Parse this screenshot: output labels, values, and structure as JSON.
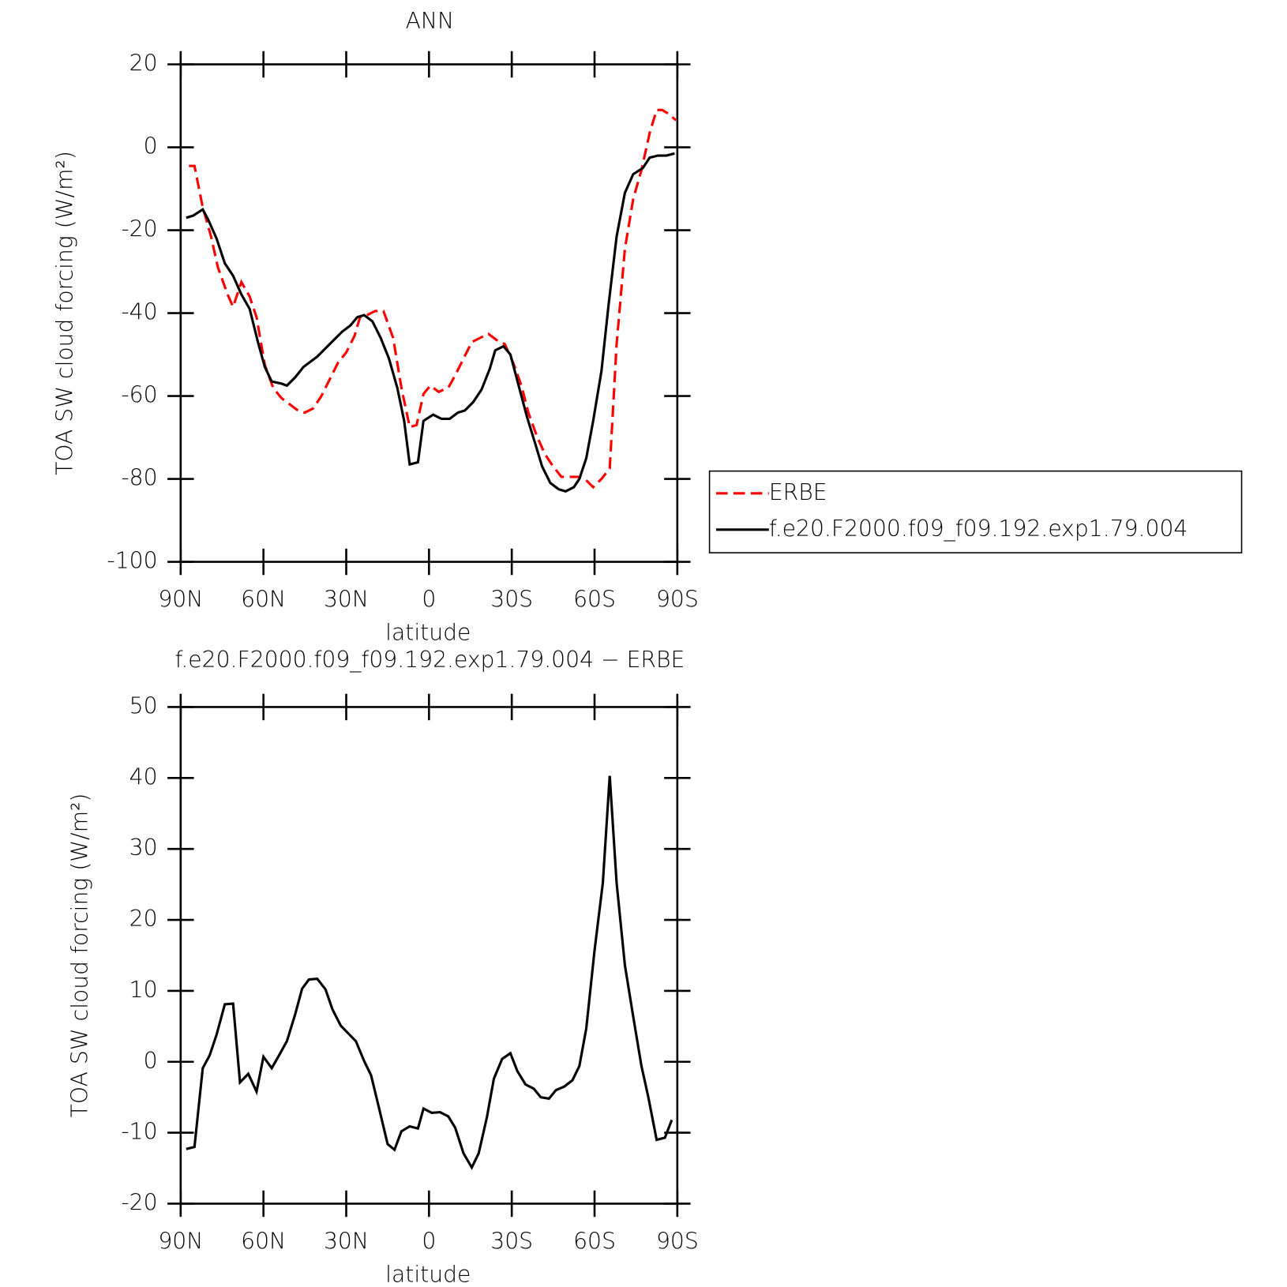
{
  "chart_data": [
    {
      "type": "line",
      "title": "ANN",
      "xlabel": "latitude",
      "ylabel": "TOA SW cloud forcing (W/m²)",
      "xlim": [
        90,
        -90
      ],
      "xticks": [
        {
          "value": 90,
          "label": "90N"
        },
        {
          "value": 60,
          "label": "60N"
        },
        {
          "value": 30,
          "label": "30N"
        },
        0,
        {
          "value": -30,
          "label": "30S"
        },
        {
          "value": -60,
          "label": "60S"
        },
        {
          "value": -90,
          "label": "90S"
        }
      ],
      "ylim": [
        -100,
        20
      ],
      "yticks": [
        -100,
        -80,
        -60,
        -40,
        -20,
        0,
        20
      ],
      "legend": "right",
      "series": [
        {
          "name": "ERBE",
          "color": "#ff0000",
          "dash": true,
          "x": [
            87,
            85,
            82,
            79,
            76.5,
            73,
            71,
            68,
            65,
            62.5,
            59.5,
            56.5,
            53.5,
            50.5,
            47.5,
            45,
            42,
            39,
            36,
            33,
            30,
            27,
            25,
            22.5,
            19.5,
            16.5,
            13,
            10,
            7,
            4.5,
            2,
            -0.5,
            -3.5,
            -7,
            -9.5,
            -12.5,
            -15.5,
            -18.5,
            -21.5,
            -24.5,
            -27.5,
            -30.5,
            -33.5,
            -36,
            -39,
            -42,
            -45,
            -48,
            -51,
            -54,
            -56.5,
            -59.5,
            -62.5,
            -65.5,
            -68,
            -71,
            -74,
            -77,
            -80,
            -82.5,
            -84.5,
            -87,
            -89.5
          ],
          "values": [
            -4.5,
            -4.5,
            -14.5,
            -21.5,
            -29,
            -35.5,
            -38.5,
            -32.5,
            -36,
            -41,
            -52.5,
            -58,
            -60.5,
            -62,
            -63.5,
            -64,
            -63,
            -60,
            -56,
            -52,
            -49.5,
            -45.5,
            -41,
            -40.5,
            -39.5,
            -39.5,
            -46,
            -58,
            -67.5,
            -67,
            -59.5,
            -57.5,
            -59,
            -58,
            -55,
            -51,
            -47,
            -46,
            -45,
            -46.5,
            -47.5,
            -52,
            -57.5,
            -64,
            -69.5,
            -74,
            -77,
            -79.5,
            -79.5,
            -79.5,
            -80,
            -82,
            -80,
            -77.5,
            -47.5,
            -24.5,
            -12.5,
            -5.5,
            3.5,
            9,
            9,
            8,
            6.5
          ]
        },
        {
          "name": "f.e20.F2000.f09_f09.192.exp1.79.004",
          "color": "#000000",
          "dash": false,
          "x": [
            88,
            85.5,
            82,
            80,
            77,
            74,
            71,
            68,
            65,
            62,
            59.5,
            57,
            53.5,
            51.5,
            48.5,
            45.5,
            43.5,
            40.5,
            37.5,
            34.5,
            31.5,
            28.5,
            26,
            23.5,
            20.5,
            17.5,
            14.5,
            11.5,
            9,
            7,
            4,
            2,
            -1.5,
            -4.5,
            -7.5,
            -10.5,
            -13,
            -16,
            -19,
            -22,
            -24,
            -27,
            -29.5,
            -32.5,
            -35.5,
            -38.5,
            -41,
            -44,
            -47,
            -49.5,
            -52.5,
            -54.5,
            -57,
            -59.5,
            -62.5,
            -65,
            -68,
            -71,
            -74,
            -77.5,
            -80,
            -83,
            -86,
            -89
          ],
          "values": [
            -17,
            -16.5,
            -15,
            -17.5,
            -22,
            -28,
            -31,
            -35.5,
            -39,
            -47,
            -53,
            -56.5,
            -57,
            -57.5,
            -55.5,
            -53,
            -52,
            -50.5,
            -48.5,
            -46.5,
            -44.5,
            -43,
            -41,
            -40.5,
            -42,
            -46,
            -51,
            -58,
            -66,
            -76.5,
            -76,
            -66,
            -64.5,
            -65.5,
            -65.5,
            -64,
            -63.5,
            -61.5,
            -58.5,
            -53.5,
            -49,
            -48,
            -50,
            -57.5,
            -65,
            -71.5,
            -77,
            -81,
            -82.5,
            -83,
            -82,
            -80,
            -75,
            -66,
            -54,
            -38.5,
            -21.5,
            -11,
            -6.5,
            -5,
            -2.5,
            -2,
            -2,
            -1.5
          ]
        }
      ]
    },
    {
      "type": "line",
      "title": "f.e20.F2000.f09_f09.192.exp1.79.004 − ERBE",
      "xlabel": "latitude",
      "ylabel": "TOA SW cloud forcing (W/m²)",
      "xlim": [
        90,
        -90
      ],
      "xticks": [
        {
          "value": 90,
          "label": "90N"
        },
        {
          "value": 60,
          "label": "60N"
        },
        {
          "value": 30,
          "label": "30N"
        },
        0,
        {
          "value": -30,
          "label": "30S"
        },
        {
          "value": -60,
          "label": "60S"
        },
        {
          "value": -90,
          "label": "90S"
        }
      ],
      "ylim": [
        -20,
        50
      ],
      "yticks": [
        -20,
        -10,
        0,
        10,
        20,
        30,
        40,
        50
      ],
      "series": [
        {
          "color": "#000000",
          "dash": false,
          "x": [
            88,
            85,
            82,
            79.5,
            77,
            74,
            71,
            68.5,
            65.5,
            62.5,
            60,
            57,
            54.5,
            51.5,
            48.5,
            46,
            43.5,
            40.5,
            37.5,
            35,
            32,
            29.5,
            26.5,
            23.5,
            21,
            18,
            15,
            12.5,
            10,
            7,
            4,
            2,
            -1,
            -4,
            -7,
            -9.5,
            -12.5,
            -15.5,
            -18,
            -21,
            -23.5,
            -26.5,
            -29.5,
            -32,
            -35,
            -38,
            -40.5,
            -43.5,
            -46,
            -49,
            -52,
            -54.5,
            -57,
            -60,
            -63,
            -65.5,
            -68,
            -71,
            -74,
            -77,
            -79.5,
            -82.5,
            -85.5,
            -88
          ],
          "values": [
            -12.3,
            -12,
            -0.9,
            0.9,
            3.8,
            8.1,
            8.2,
            -2.9,
            -1.7,
            -4.2,
            0.7,
            -0.9,
            0.8,
            2.9,
            6.7,
            10.3,
            11.6,
            11.7,
            10.2,
            7.4,
            5.1,
            4.1,
            2.9,
            0.1,
            -1.9,
            -6.7,
            -11.6,
            -12.4,
            -9.8,
            -9.1,
            -9.4,
            -6.6,
            -7.2,
            -7.1,
            -7.7,
            -9.3,
            -12.9,
            -14.9,
            -12.9,
            -7.8,
            -2.4,
            0.4,
            1.2,
            -1.3,
            -3.2,
            -3.8,
            -5,
            -5.2,
            -4,
            -3.5,
            -2.6,
            -0.6,
            4.7,
            15.7,
            25.2,
            40.3,
            25.2,
            13.6,
            6.4,
            -0.6,
            -5,
            -11,
            -10.7,
            -8.2
          ]
        }
      ]
    }
  ]
}
